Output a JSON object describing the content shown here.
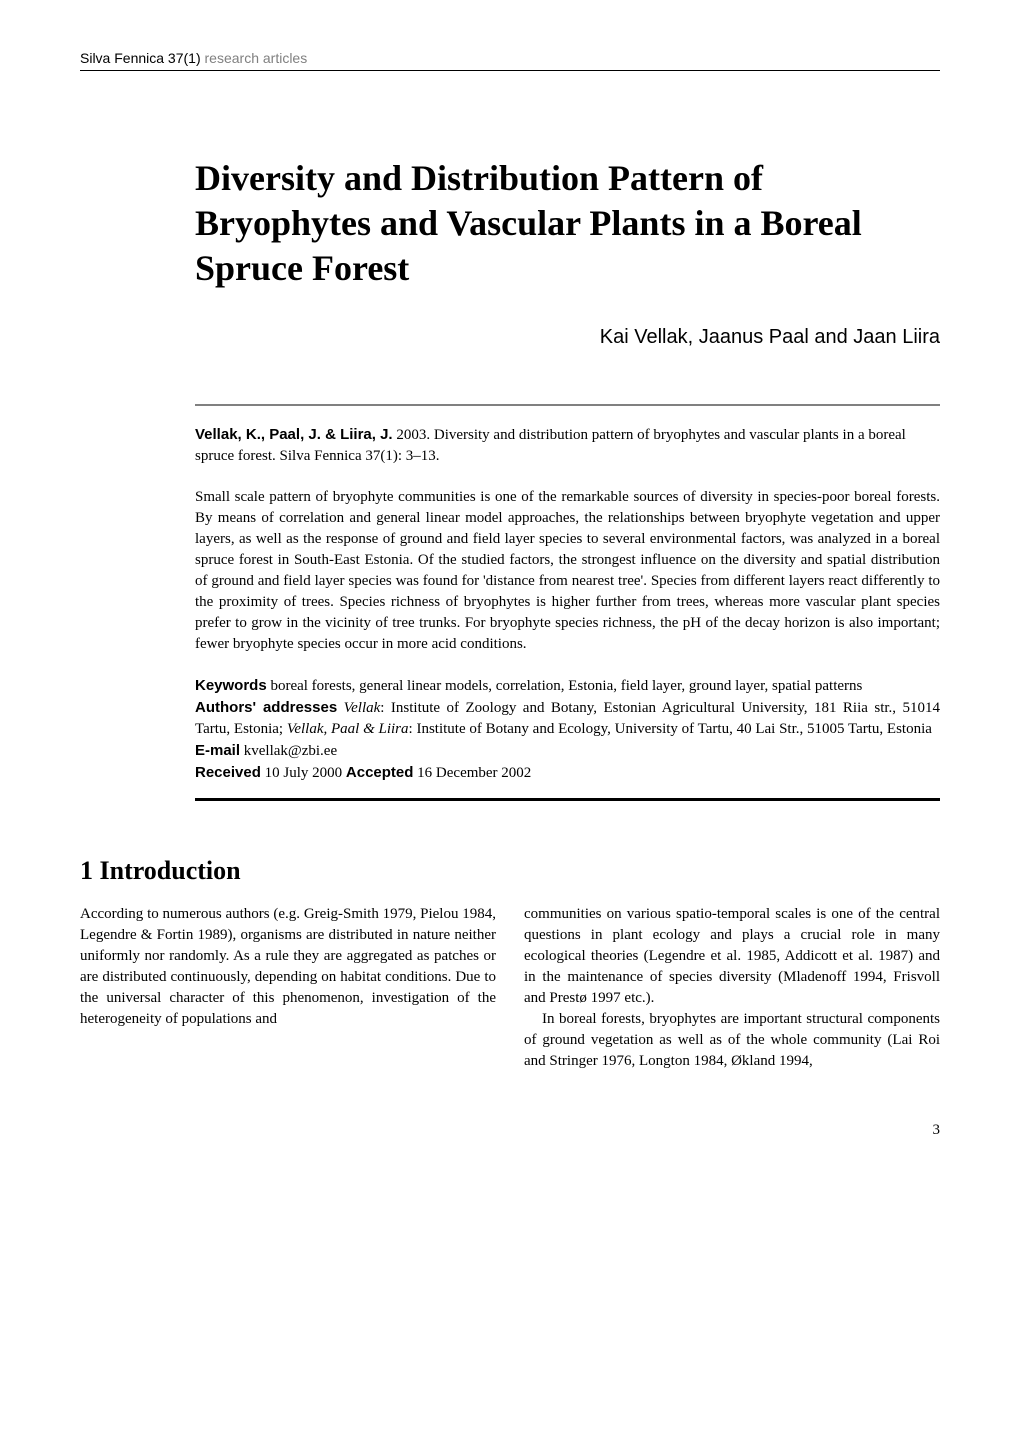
{
  "header": {
    "journal": "Silva Fennica 37(1)",
    "subtitle": "research articles"
  },
  "title": "Diversity and Distribution Pattern of Bryophytes and Vascular Plants in a Boreal Spruce Forest",
  "authors_line": "Kai Vellak, Jaanus Paal and Jaan Liira",
  "citation": {
    "authors": "Vellak, K., Paal, J. & Liira, J.",
    "text": " 2003. Diversity and distribution pattern of bryophytes and vascular plants in a boreal spruce forest. Silva Fennica 37(1): 3–13."
  },
  "abstract": "Small scale pattern of bryophyte communities is one of the remarkable sources of diversity in species-poor boreal forests. By means of correlation and general linear model approaches, the relationships between bryophyte vegetation and upper layers, as well as the response of ground and field layer species to several environmental factors, was analyzed in a boreal spruce forest in South-East Estonia. Of the studied factors, the strongest influence on the diversity and spatial distribution of ground and field layer species was found for 'distance from nearest tree'. Species from different layers react differently to the proximity of trees. Species richness of bryophytes is higher further from trees, whereas more vascular plant species prefer to grow in the vicinity of tree trunks. For bryophyte species richness, the pH of the decay horizon is also important; fewer bryophyte species occur in more acid conditions.",
  "keywords": {
    "label": "Keywords",
    "text": " boreal forests, general linear models, correlation, Estonia, field layer, ground layer, spatial patterns"
  },
  "addresses": {
    "label": "Authors' addresses",
    "vellak_italic": "Vellak",
    "vellak_text": ": Institute of Zoology and Botany, Estonian Agricultural University, 181 Riia str., 51014 Tartu, Estonia; ",
    "others_italic": "Vellak, Paal & Liira",
    "others_text": ": Institute of Botany and Ecology, University of Tartu, 40 Lai Str., 51005 Tartu, Estonia"
  },
  "email": {
    "label": "E-mail",
    "text": " kvellak@zbi.ee"
  },
  "received": {
    "label": "Received",
    "text": " 10 July 2000  "
  },
  "accepted": {
    "label": "Accepted",
    "text": " 16 December 2002"
  },
  "section_heading": "1 Introduction",
  "body": {
    "col1": "According to numerous authors (e.g. Greig-Smith 1979, Pielou 1984, Legendre & Fortin 1989), organisms are distributed in nature neither uniformly nor randomly. As a rule they are aggregated as patches or are distributed continuously, depending on habitat conditions. Due to the universal character of this phenomenon, investigation of the heterogeneity of populations and",
    "col2_p1": "communities on various spatio-temporal scales is one of the central questions in plant ecology and plays a crucial role in many ecological theories (Legendre et al. 1985, Addicott et al. 1987) and in the maintenance of species diversity (Mladenoff 1994, Frisvoll and Prestø 1997 etc.).",
    "col2_p2": "In boreal forests, bryophytes are important structural components of ground vegetation as well as of the whole community (Lai Roi and Stringer 1976, Longton 1984, Økland 1994,"
  },
  "page_number": "3"
}
